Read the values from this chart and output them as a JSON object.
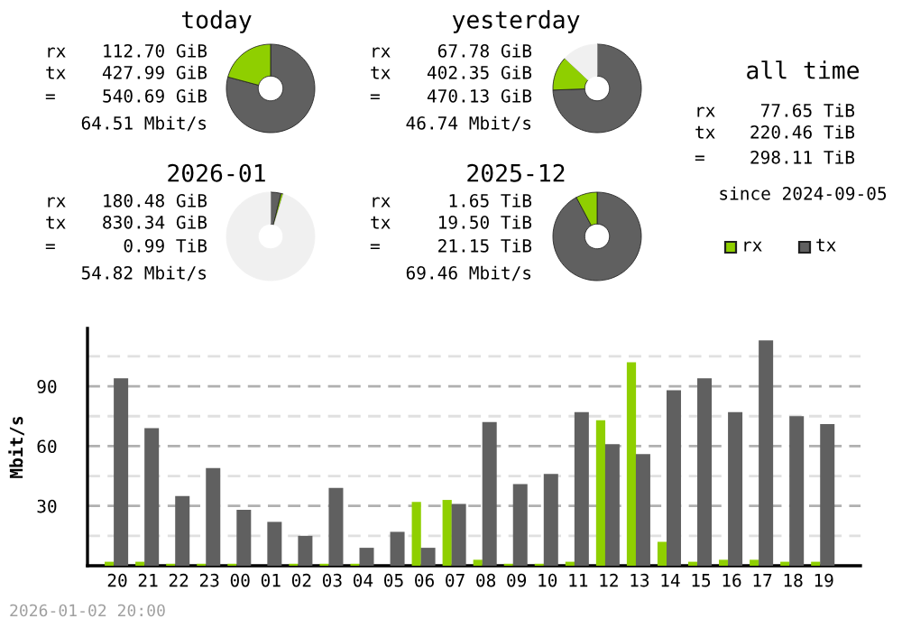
{
  "chart_data": [
    {
      "type": "donut",
      "title": "today",
      "categories": [
        null,
        null
      ],
      "values": [
        79.16,
        20.84
      ],
      "colors": [
        "#606060",
        "#8fcf00"
      ],
      "annotations": [
        "rx 112.70 GiB",
        "tx 427.99 GiB",
        "= 540.69 GiB",
        "64.51 Mbit/s"
      ]
    },
    {
      "type": "donut",
      "title": "yesterday",
      "categories": [
        null,
        null,
        null
      ],
      "values": [
        74.41,
        12.54,
        13.05
      ],
      "colors": [
        "#606060",
        "#8fcf00",
        "#f0f0f0"
      ],
      "annotations": [
        "rx 67.78 GiB",
        "tx 402.35 GiB",
        "= 470.13 GiB",
        "46.74 Mbit/s"
      ]
    },
    {
      "type": "donut",
      "title": "2026-01",
      "categories": [
        null,
        null,
        null
      ],
      "values": [
        3.83,
        0.83,
        95.34
      ],
      "colors": [
        "#606060",
        "#8fcf00",
        "#f0f0f0"
      ],
      "annotations": [
        "rx 180.48 GiB",
        "tx 830.34 GiB",
        "= 0.99 TiB",
        "54.82 Mbit/s"
      ]
    },
    {
      "type": "donut",
      "title": "2025-12",
      "categories": [
        null,
        null
      ],
      "values": [
        92.2,
        7.8
      ],
      "colors": [
        "#606060",
        "#8fcf00"
      ],
      "annotations": [
        "rx 1.65 TiB",
        "tx 19.50 TiB",
        "= 21.15 TiB",
        "69.46 Mbit/s"
      ]
    },
    {
      "type": "other",
      "title": "all time",
      "annotations": [
        "rx 77.65 TiB",
        "tx 220.46 TiB",
        "= 298.11 TiB",
        "since 2024-09-05"
      ]
    },
    {
      "type": "bar",
      "ylabel": "Mbit/s",
      "categories": [
        "20",
        "21",
        "22",
        "23",
        "00",
        "01",
        "02",
        "03",
        "04",
        "05",
        "06",
        "07",
        "08",
        "09",
        "10",
        "11",
        "12",
        "13",
        "14",
        "15",
        "16",
        "17",
        "18",
        "19"
      ],
      "series": [
        {
          "name": "rx",
          "color": "#8fcf00",
          "values": [
            2,
            2,
            1,
            1,
            1,
            0,
            1,
            1,
            1,
            0,
            32,
            33,
            3,
            1,
            1,
            2,
            73,
            102,
            12,
            2,
            3,
            3,
            2,
            2
          ]
        },
        {
          "name": "tx",
          "color": "#606060",
          "values": [
            94,
            69,
            35,
            49,
            28,
            22,
            15,
            39,
            9,
            17,
            9,
            31,
            72,
            41,
            46,
            77,
            61,
            56,
            88,
            94,
            77,
            113,
            75,
            71
          ]
        }
      ],
      "ylim": [
        0,
        119
      ],
      "yticks": [
        {
          "value": 15,
          "label": null
        },
        30,
        {
          "value": 45,
          "label": null
        },
        60,
        {
          "value": 75,
          "label": null
        },
        90,
        {
          "value": 105,
          "label": null
        }
      ],
      "grid": "y",
      "legend": "top right",
      "annotations": [
        "2026-01-02 20:00"
      ]
    }
  ]
}
